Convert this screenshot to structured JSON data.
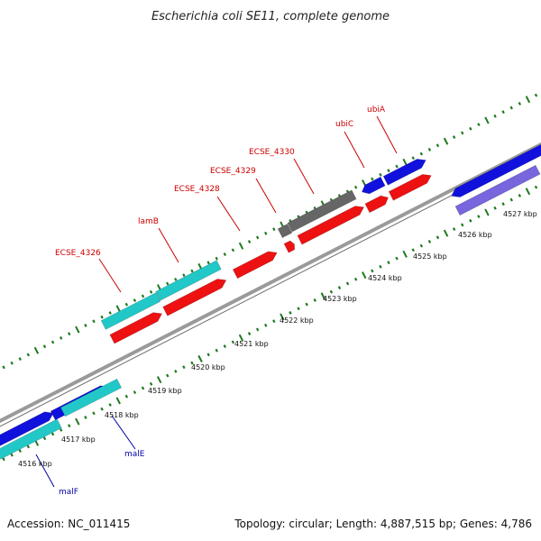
{
  "title": "Escherichia coli SE11, complete genome",
  "footer": {
    "accession": "Accession: NC_011415",
    "summary": "Topology: circular; Length: 4,887,515 bp; Genes: 4,786"
  },
  "colors": {
    "background": "#ffffff",
    "backbone": "#8c8c8c",
    "tick_green": "#1f7a1f",
    "gene_red": "#ee1111",
    "gene_cyan": "#22c8c8",
    "gene_blue": "#1111dd",
    "gene_gray": "#666666",
    "gene_lavender": "#7766dd",
    "label_red": "#cc0000",
    "label_blue": "#0000aa"
  },
  "ticks": [
    {
      "label": "4516 kbp"
    },
    {
      "label": "4517 kbp"
    },
    {
      "label": "4518 kbp"
    },
    {
      "label": "4519 kbp"
    },
    {
      "label": "4520 kbp"
    },
    {
      "label": "4521 kbp"
    },
    {
      "label": "4522 kbp"
    },
    {
      "label": "4523 kbp"
    },
    {
      "label": "4524 kbp"
    },
    {
      "label": "4525 kbp"
    },
    {
      "label": "4526 kbp"
    },
    {
      "label": "4527 kbp"
    }
  ],
  "gene_labels": [
    {
      "name": "ECSE_4326"
    },
    {
      "name": "lamB"
    },
    {
      "name": "ECSE_4328"
    },
    {
      "name": "ECSE_4329"
    },
    {
      "name": "ECSE_4330"
    },
    {
      "name": "ubiC"
    },
    {
      "name": "ubiA"
    },
    {
      "name": "malE"
    },
    {
      "name": "malF"
    }
  ]
}
